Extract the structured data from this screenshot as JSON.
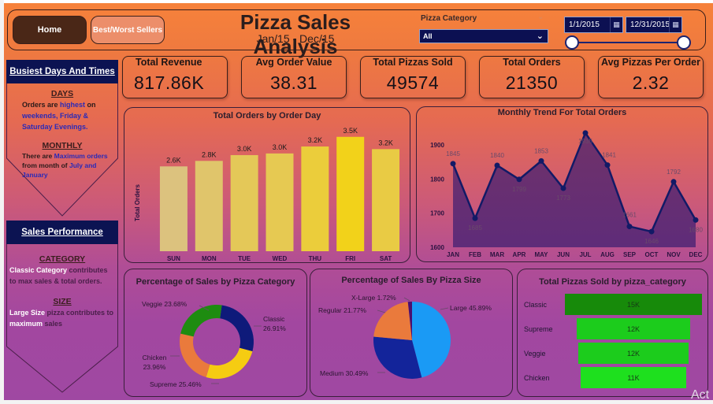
{
  "header": {
    "title": "Pizza Sales Analysis",
    "subtitle": "Jan/15 - Dec/15",
    "nav": {
      "home_label": "Home",
      "best_worst_label": "Best/Worst Sellers"
    },
    "category_slicer": {
      "label": "Pizza Category",
      "selected": "All"
    },
    "date_range": {
      "from": "1/1/2015",
      "to": "12/31/2015",
      "calendar_icon": "calendar-icon"
    }
  },
  "info_panels": {
    "busiest": {
      "heading": "Busiest Days And Times",
      "days_title": "DAYS",
      "days_text": [
        {
          "t": "Orders are ",
          "c": "dark"
        },
        {
          "t": "highest",
          "c": "blue"
        },
        {
          "t": " on ",
          "c": "dark"
        },
        {
          "t": "weekends, Friday & Saturday Evenings.",
          "c": "blue"
        }
      ],
      "monthly_title": "MONTHLY",
      "monthly_text": [
        {
          "t": "There are ",
          "c": "dark"
        },
        {
          "t": "Maximum orders",
          "c": "blue"
        },
        {
          "t": " from month of ",
          "c": "dark"
        },
        {
          "t": "July and January",
          "c": "blue"
        }
      ]
    },
    "sales": {
      "heading": "Sales Performance",
      "category_title": "CATEGORY",
      "category_text": [
        {
          "t": "Classic Category",
          "c": "white"
        },
        {
          "t": " contributes to max sales & total orders.",
          "c": "mauve"
        }
      ],
      "size_title": "SIZE",
      "size_text": [
        {
          "t": "Large Size",
          "c": "white"
        },
        {
          "t": " pizza contributes to ",
          "c": "mauve"
        },
        {
          "t": "maximum",
          "c": "white"
        },
        {
          "t": " sales",
          "c": "mauve"
        }
      ]
    }
  },
  "kpis": [
    {
      "label": "Total Revenue",
      "value": "817.86K"
    },
    {
      "label": "Avg Order Value",
      "value": "38.31"
    },
    {
      "label": "Total Pizzas Sold",
      "value": "49574"
    },
    {
      "label": "Total Orders",
      "value": "21350"
    },
    {
      "label": "Avg Pizzas Per Order",
      "value": "2.32"
    }
  ],
  "colors": {
    "navy": "#0c1352",
    "bar_gradient_low": "#dcc27e",
    "bar_gradient_high": "#f2d21a",
    "line": "#121a66",
    "area": "#5a2a6a"
  },
  "chart_data": [
    {
      "id": "orders_by_day",
      "type": "bar",
      "title": "Total Orders by Order Day",
      "xlabel": "",
      "ylabel": "Total Orders",
      "categories": [
        "SUN",
        "MON",
        "TUE",
        "WED",
        "THU",
        "FRI",
        "SAT"
      ],
      "values": [
        2624,
        2794,
        2973,
        3024,
        3239,
        3538,
        3158
      ],
      "data_labels": [
        "2.6K",
        "2.8K",
        "3.0K",
        "3.0K",
        "3.2K",
        "3.5K",
        "3.2K"
      ],
      "ylim": [
        0,
        3800
      ],
      "grid": false
    },
    {
      "id": "monthly_trend",
      "type": "area",
      "title": "Monthly Trend For Total Orders",
      "categories": [
        "JAN",
        "FEB",
        "MAR",
        "APR",
        "MAY",
        "JUN",
        "JUL",
        "AUG",
        "SEP",
        "OCT",
        "NOV",
        "DEC"
      ],
      "values": [
        1845,
        1685,
        1840,
        1799,
        1853,
        1773,
        1935,
        1841,
        1661,
        1646,
        1792,
        1680
      ],
      "yticks": [
        1600,
        1700,
        1800,
        1900
      ],
      "ylim": [
        1600,
        1960
      ],
      "grid": false
    },
    {
      "id": "sales_by_category",
      "type": "pie",
      "variant": "donut",
      "title": "Percentage of Sales by Pizza Category",
      "slices": [
        {
          "name": "Classic",
          "value": 26.91,
          "label": "Classic 26.91%",
          "color": "#0e1a7a"
        },
        {
          "name": "Supreme",
          "value": 25.46,
          "label": "Supreme 25.46%",
          "color": "#f5cc12"
        },
        {
          "name": "Chicken",
          "value": 23.96,
          "label": "Chicken 23.96%",
          "color": "#ea7a3c"
        },
        {
          "name": "Veggie",
          "value": 23.68,
          "label": "Veggie 23.68%",
          "color": "#1e8c10"
        }
      ]
    },
    {
      "id": "sales_by_size",
      "type": "pie",
      "title": "Percentage of Sales By Pizza Size",
      "slices": [
        {
          "name": "Large",
          "value": 45.89,
          "label": "Large 45.89%",
          "color": "#1a9af5"
        },
        {
          "name": "Medium",
          "value": 30.49,
          "label": "Medium 30.49%",
          "color": "#13249a"
        },
        {
          "name": "Regular",
          "value": 21.77,
          "label": "Regular 21.77%",
          "color": "#ea7a3c"
        },
        {
          "name": "X-Large",
          "value": 1.72,
          "label": "X-Large 1.72%",
          "color": "#4a1070"
        }
      ]
    },
    {
      "id": "pizzas_by_category",
      "type": "bar",
      "variant": "funnel",
      "title": "Total Pizzas Sold by pizza_category",
      "categories": [
        "Classic",
        "Supreme",
        "Veggie",
        "Chicken"
      ],
      "values": [
        14888,
        11987,
        11649,
        11050
      ],
      "data_labels": [
        "15K",
        "12K",
        "12K",
        "11K"
      ],
      "colors": [
        "#178a0a",
        "#1ccc1c",
        "#1ccc1c",
        "#1ee01e"
      ]
    }
  ],
  "watermark": "Act"
}
